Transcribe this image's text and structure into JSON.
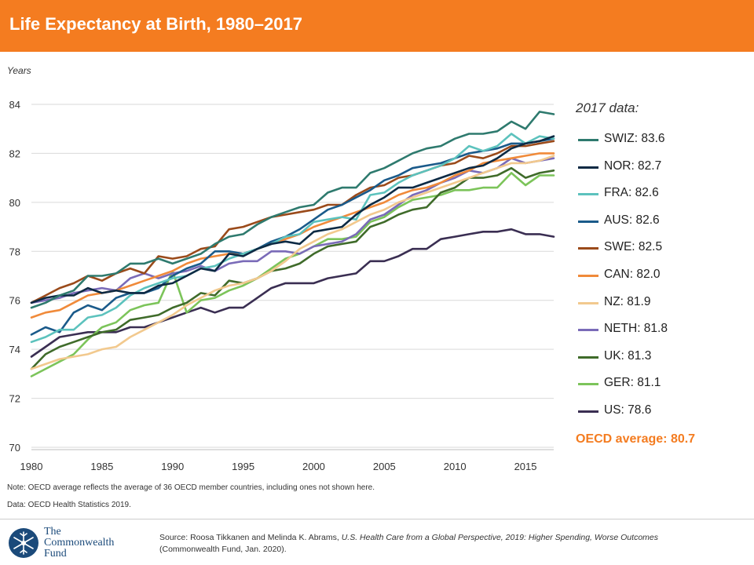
{
  "header": {
    "title": "Life Expectancy at Birth, 1980–2017"
  },
  "legend": {
    "title": "2017 data:",
    "items": [
      {
        "label": "SWIZ: 83.6",
        "color": "#2e7a6e"
      },
      {
        "label": "NOR: 82.7",
        "color": "#0d2a44"
      },
      {
        "label": "FRA: 82.6",
        "color": "#5cc2bd"
      },
      {
        "label": "AUS: 82.6",
        "color": "#1a5a8a"
      },
      {
        "label": "SWE: 82.5",
        "color": "#9a4a1a"
      },
      {
        "label": "CAN: 82.0",
        "color": "#f08a3a"
      },
      {
        "label": "NZ: 81.9",
        "color": "#f2c98e"
      },
      {
        "label": "NETH: 81.8",
        "color": "#7a6bb8"
      },
      {
        "label": "UK: 81.3",
        "color": "#3f6b2a"
      },
      {
        "label": "GER: 81.1",
        "color": "#7cc45a"
      },
      {
        "label": "US: 78.6",
        "color": "#3a2e52"
      }
    ],
    "oecd": "OECD average: 80.7"
  },
  "notes": {
    "note": "Note: OECD average reflects the average of 36 OECD member countries, including ones not shown here.",
    "data": "Data: OECD Health Statistics 2019."
  },
  "footer": {
    "logo_line1": "The",
    "logo_line2": "Commonwealth",
    "logo_line3": "Fund",
    "source_prefix": "Source: Roosa Tikkanen and Melinda K. Abrams, ",
    "source_title": "U.S. Health Care from a Global Perspective, 2019: Higher Spending, Worse Outcomes",
    "source_suffix": "(Commonwealth Fund, Jan. 2020)."
  },
  "chart_data": {
    "type": "line",
    "ylabel": "Years",
    "ylim": [
      70,
      84
    ],
    "yticks": [
      70,
      72,
      74,
      76,
      78,
      80,
      82,
      84
    ],
    "xlim": [
      1980,
      2017
    ],
    "xticks": [
      1980,
      1985,
      1990,
      1995,
      2000,
      2005,
      2010,
      2015
    ],
    "grid": true,
    "legend_placement": "right",
    "x": [
      1980,
      1981,
      1982,
      1983,
      1984,
      1985,
      1986,
      1987,
      1988,
      1989,
      1990,
      1991,
      1992,
      1993,
      1994,
      1995,
      1996,
      1997,
      1998,
      1999,
      2000,
      2001,
      2002,
      2003,
      2004,
      2005,
      2006,
      2007,
      2008,
      2009,
      2010,
      2011,
      2012,
      2013,
      2014,
      2015,
      2016,
      2017
    ],
    "series": [
      {
        "name": "SWIZ",
        "color": "#2e7a6e",
        "values": [
          75.7,
          75.9,
          76.2,
          76.4,
          77.0,
          77.0,
          77.1,
          77.5,
          77.5,
          77.7,
          77.5,
          77.7,
          77.9,
          78.3,
          78.6,
          78.7,
          79.1,
          79.4,
          79.6,
          79.8,
          79.9,
          80.4,
          80.6,
          80.6,
          81.2,
          81.4,
          81.7,
          82.0,
          82.2,
          82.3,
          82.6,
          82.8,
          82.8,
          82.9,
          83.3,
          83.0,
          83.7,
          83.6
        ]
      },
      {
        "name": "NOR",
        "color": "#0d2a44",
        "values": [
          75.9,
          76.1,
          76.2,
          76.2,
          76.5,
          76.3,
          76.4,
          76.3,
          76.3,
          76.6,
          76.7,
          77.0,
          77.3,
          77.2,
          77.9,
          77.8,
          78.1,
          78.3,
          78.4,
          78.3,
          78.8,
          78.9,
          79.0,
          79.5,
          79.9,
          80.2,
          80.6,
          80.6,
          80.8,
          81.0,
          81.2,
          81.4,
          81.5,
          81.8,
          82.2,
          82.4,
          82.5,
          82.7
        ]
      },
      {
        "name": "FRA",
        "color": "#5cc2bd",
        "values": [
          74.3,
          74.5,
          74.8,
          74.8,
          75.3,
          75.4,
          75.7,
          76.2,
          76.5,
          76.7,
          76.9,
          77.0,
          77.3,
          77.4,
          77.7,
          77.9,
          78.1,
          78.3,
          78.6,
          78.7,
          79.2,
          79.3,
          79.4,
          79.3,
          80.3,
          80.4,
          80.8,
          81.1,
          81.3,
          81.5,
          81.8,
          82.3,
          82.1,
          82.3,
          82.8,
          82.4,
          82.7,
          82.6
        ]
      },
      {
        "name": "AUS",
        "color": "#1a5a8a",
        "values": [
          74.6,
          74.9,
          74.7,
          75.5,
          75.8,
          75.6,
          76.1,
          76.3,
          76.3,
          76.5,
          77.0,
          77.3,
          77.5,
          78.0,
          78.0,
          77.9,
          78.1,
          78.4,
          78.6,
          78.9,
          79.3,
          79.7,
          79.9,
          80.2,
          80.5,
          80.9,
          81.1,
          81.4,
          81.5,
          81.6,
          81.8,
          82.0,
          82.1,
          82.2,
          82.4,
          82.4,
          82.5,
          82.6
        ]
      },
      {
        "name": "SWE",
        "color": "#9a4a1a",
        "values": [
          75.9,
          76.2,
          76.5,
          76.7,
          77.0,
          76.8,
          77.1,
          77.3,
          77.1,
          77.8,
          77.7,
          77.8,
          78.1,
          78.2,
          78.9,
          79.0,
          79.2,
          79.4,
          79.5,
          79.6,
          79.7,
          79.9,
          79.9,
          80.3,
          80.6,
          80.7,
          81.0,
          81.1,
          81.3,
          81.5,
          81.6,
          81.9,
          81.8,
          82.0,
          82.3,
          82.3,
          82.4,
          82.5
        ]
      },
      {
        "name": "CAN",
        "color": "#f08a3a",
        "values": [
          75.3,
          75.5,
          75.6,
          75.9,
          76.2,
          76.3,
          76.4,
          76.6,
          76.8,
          77.0,
          77.2,
          77.5,
          77.7,
          77.8,
          77.9,
          77.9,
          78.1,
          78.3,
          78.5,
          78.7,
          79.0,
          79.2,
          79.4,
          79.6,
          79.8,
          80.0,
          80.3,
          80.5,
          80.6,
          80.8,
          81.1,
          81.3,
          81.6,
          81.7,
          81.8,
          81.9,
          82.0,
          82.0
        ]
      },
      {
        "name": "NZ",
        "color": "#f2c98e",
        "values": [
          73.2,
          73.4,
          73.6,
          73.7,
          73.8,
          74.0,
          74.1,
          74.5,
          74.8,
          75.1,
          75.4,
          75.8,
          76.1,
          76.4,
          76.6,
          76.7,
          76.9,
          77.2,
          77.6,
          78.1,
          78.4,
          78.7,
          78.9,
          79.2,
          79.5,
          79.7,
          80.0,
          80.2,
          80.4,
          80.6,
          80.8,
          81.0,
          81.2,
          81.4,
          81.6,
          81.6,
          81.7,
          81.9
        ]
      },
      {
        "name": "NETH",
        "color": "#7a6bb8",
        "values": [
          75.9,
          76.0,
          76.1,
          76.3,
          76.4,
          76.5,
          76.4,
          76.9,
          77.1,
          76.9,
          77.1,
          77.2,
          77.4,
          77.2,
          77.5,
          77.6,
          77.6,
          78.0,
          78.0,
          77.9,
          78.2,
          78.3,
          78.4,
          78.7,
          79.3,
          79.5,
          79.9,
          80.3,
          80.5,
          80.8,
          81.0,
          81.3,
          81.2,
          81.4,
          81.8,
          81.6,
          81.7,
          81.8
        ]
      },
      {
        "name": "UK",
        "color": "#3f6b2a",
        "values": [
          73.2,
          73.8,
          74.1,
          74.3,
          74.5,
          74.7,
          74.8,
          75.2,
          75.3,
          75.4,
          75.7,
          75.9,
          76.3,
          76.2,
          76.8,
          76.7,
          76.9,
          77.2,
          77.3,
          77.5,
          77.9,
          78.2,
          78.3,
          78.4,
          79.0,
          79.2,
          79.5,
          79.7,
          79.8,
          80.4,
          80.6,
          81.0,
          81.0,
          81.1,
          81.4,
          81.0,
          81.2,
          81.3
        ]
      },
      {
        "name": "GER",
        "color": "#7cc45a",
        "values": [
          72.9,
          73.2,
          73.5,
          73.8,
          74.4,
          74.9,
          75.1,
          75.6,
          75.8,
          75.9,
          77.2,
          75.5,
          76.0,
          76.1,
          76.4,
          76.6,
          76.9,
          77.3,
          77.7,
          77.9,
          78.2,
          78.5,
          78.5,
          78.6,
          79.2,
          79.4,
          79.8,
          80.1,
          80.2,
          80.3,
          80.5,
          80.5,
          80.6,
          80.6,
          81.2,
          80.7,
          81.1,
          81.1
        ]
      },
      {
        "name": "US",
        "color": "#3a2e52",
        "values": [
          73.7,
          74.1,
          74.5,
          74.6,
          74.7,
          74.7,
          74.7,
          74.9,
          74.9,
          75.1,
          75.3,
          75.5,
          75.7,
          75.5,
          75.7,
          75.7,
          76.1,
          76.5,
          76.7,
          76.7,
          76.7,
          76.9,
          77.0,
          77.1,
          77.6,
          77.6,
          77.8,
          78.1,
          78.1,
          78.5,
          78.6,
          78.7,
          78.8,
          78.8,
          78.9,
          78.7,
          78.7,
          78.6
        ]
      }
    ]
  }
}
